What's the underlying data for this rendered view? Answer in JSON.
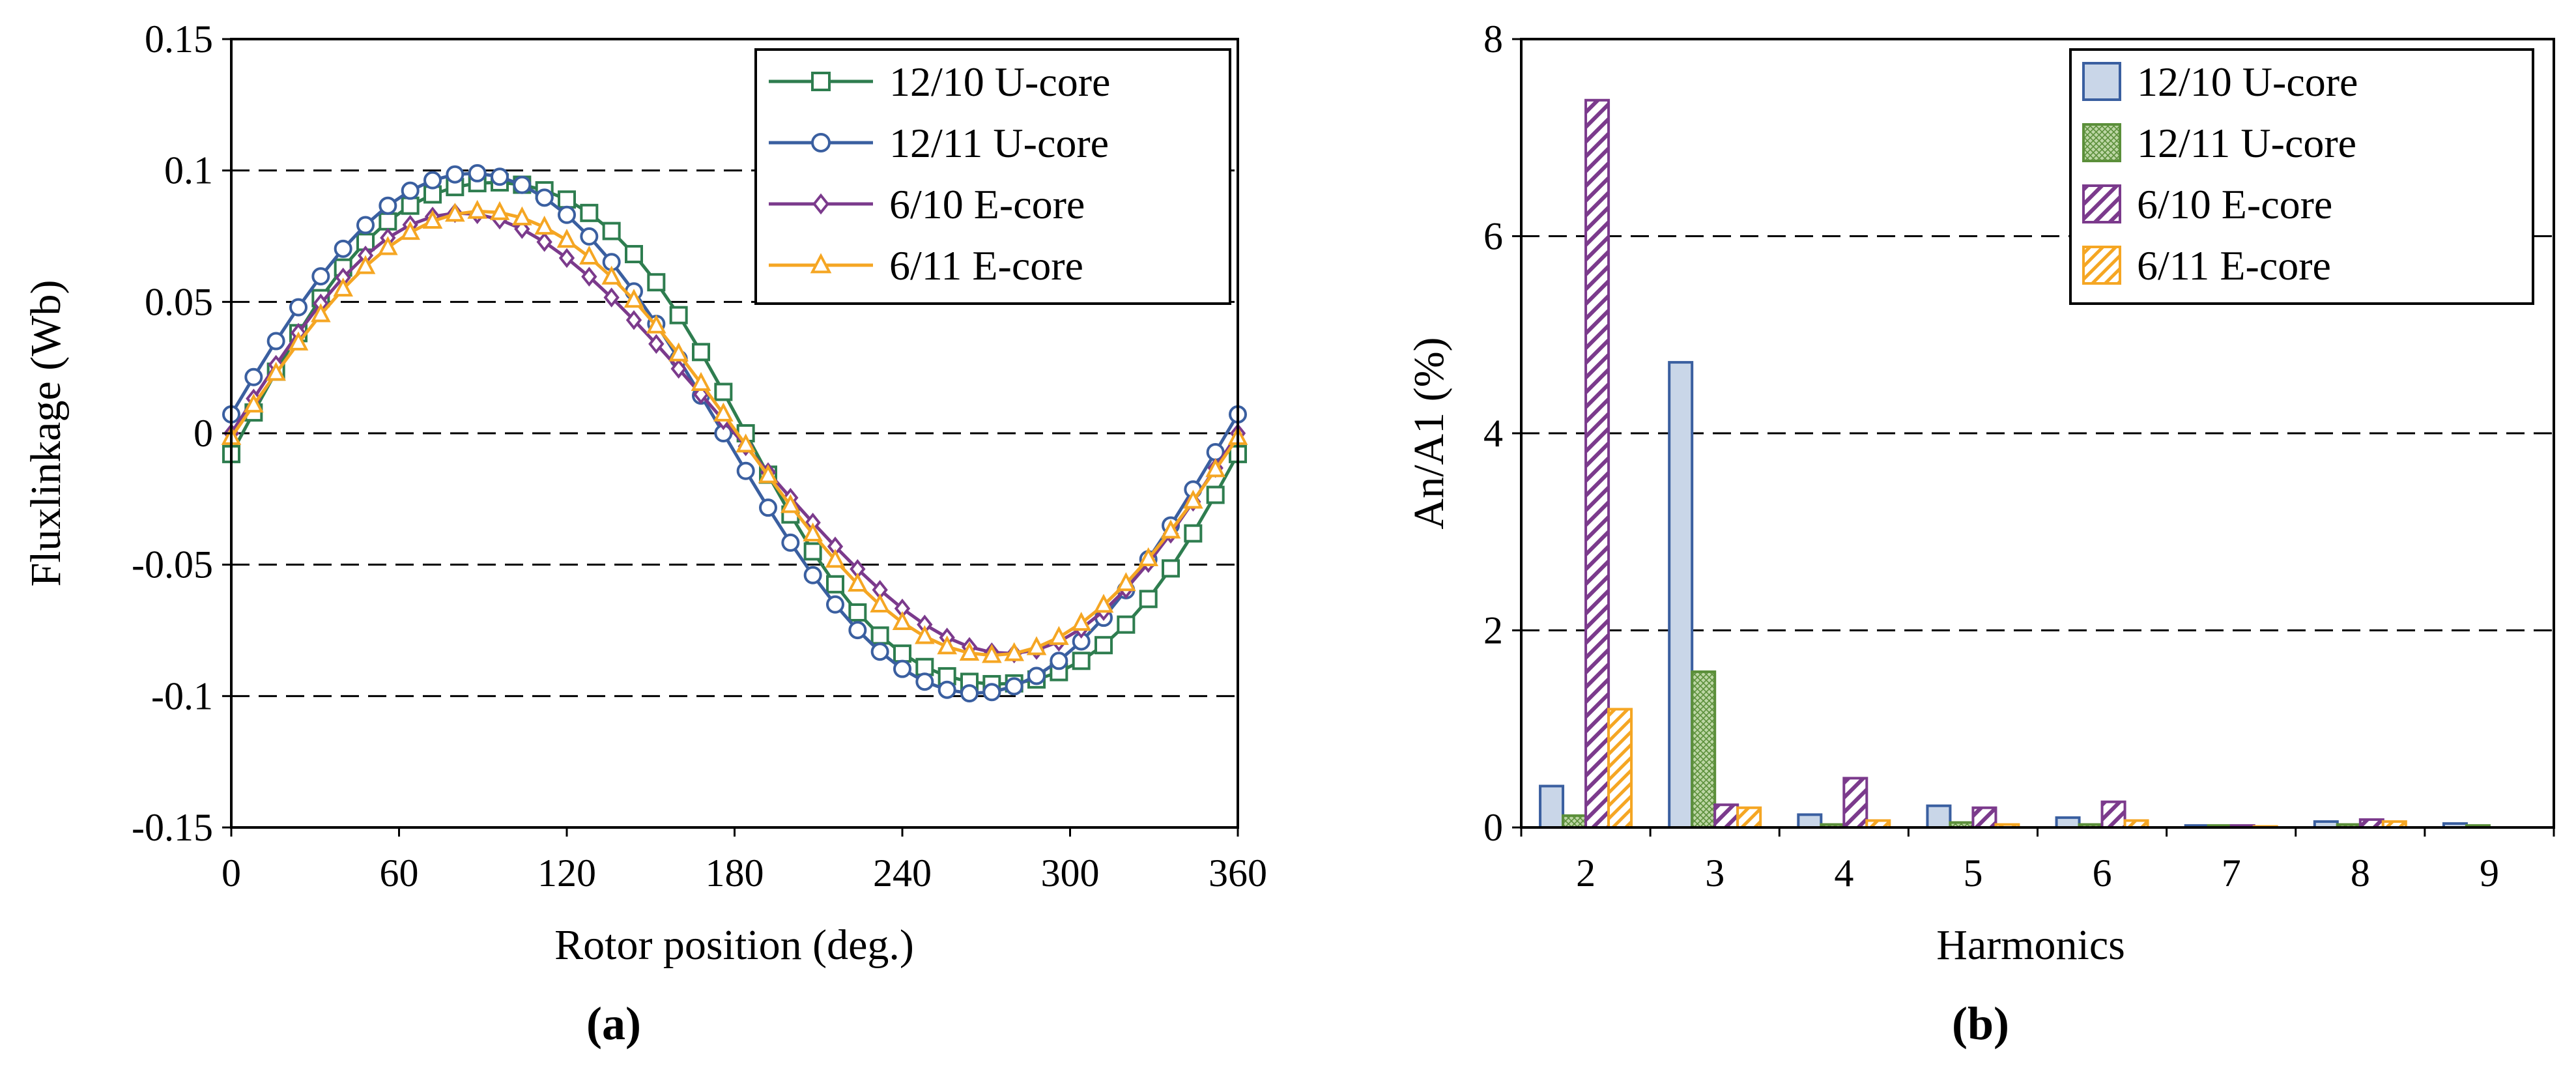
{
  "figure_captions": [
    "(a)",
    "(b)"
  ],
  "chart_data": [
    {
      "type": "line",
      "panel": "(a)",
      "title": "",
      "xlabel": "Rotor position (deg.)",
      "ylabel": "Fluxlinkage (Wb)",
      "xlim": [
        0,
        360
      ],
      "ylim": [
        -0.15,
        0.15
      ],
      "xticks": [
        0,
        60,
        120,
        180,
        240,
        300,
        360
      ],
      "xtick_labels": [
        "0",
        "60",
        "120",
        "180",
        "240",
        "300",
        "360"
      ],
      "yticks": [
        -0.15,
        -0.1,
        -0.05,
        0,
        0.05,
        0.1,
        0.15
      ],
      "ytick_labels": [
        "-0.15",
        "-0.1",
        "-0.05",
        "0",
        "0.05",
        "0.1",
        "0.15"
      ],
      "grid": "horizontal dashed",
      "legend_position": "top-right",
      "sample_step_deg": 8,
      "series": [
        {
          "name": "12/10 U-core",
          "color": "#2e7d4f",
          "marker": "square",
          "amplitude": 0.1,
          "phase_deg": 4,
          "harmonic2": 0.0,
          "harmonic3": 0.0045
        },
        {
          "name": "12/11 U-core",
          "color": "#3a5fa0",
          "marker": "circle",
          "amplitude": 0.1,
          "phase_deg": -4,
          "harmonic2": 0.0,
          "harmonic3": 0.001
        },
        {
          "name": " 6/10 E-core",
          "color": "#7b3a8c",
          "marker": "diamond",
          "amplitude": 0.083,
          "phase_deg": 0,
          "harmonic2": 0.006,
          "harmonic3": 0.0
        },
        {
          "name": " 6/11 E-core",
          "color": "#f5a623",
          "marker": "triangle",
          "amplitude": 0.085,
          "phase_deg": 1,
          "harmonic2": 0.001,
          "harmonic3": 0.0005
        }
      ]
    },
    {
      "type": "bar",
      "panel": "(b)",
      "title": "",
      "xlabel": "Harmonics",
      "ylabel": "An/A1 (%)",
      "ylim": [
        0,
        8
      ],
      "yticks": [
        0,
        2,
        4,
        6,
        8
      ],
      "ytick_labels": [
        "0",
        "2",
        "4",
        "6",
        "8"
      ],
      "categories": [
        "2",
        "3",
        "4",
        "5",
        "6",
        "7",
        "8",
        "9"
      ],
      "grid": "horizontal dashed",
      "legend_position": "top-right",
      "series": [
        {
          "name": "12/10 U-core",
          "edge": "#3a5fa0",
          "fill": "#c9d6e8",
          "pattern": "solid",
          "values": [
            0.42,
            4.72,
            0.13,
            0.22,
            0.1,
            0.02,
            0.06,
            0.04
          ]
        },
        {
          "name": "12/11 U-core",
          "edge": "#5b8f3a",
          "fill": "#bcd6a4",
          "pattern": "crosshatch",
          "values": [
            0.12,
            1.58,
            0.03,
            0.05,
            0.03,
            0.02,
            0.03,
            0.02
          ]
        },
        {
          "name": " 6/10 E-core",
          "edge": "#7b3a8c",
          "fill": "#ffffff",
          "pattern": "hatch",
          "values": [
            7.38,
            0.23,
            0.5,
            0.2,
            0.26,
            0.02,
            0.08,
            0.0
          ]
        },
        {
          "name": " 6/11 E-core",
          "edge": "#f5a623",
          "fill": "#ffffff",
          "pattern": "hatch",
          "values": [
            1.2,
            0.2,
            0.07,
            0.03,
            0.07,
            0.01,
            0.06,
            0.0
          ]
        }
      ]
    }
  ]
}
